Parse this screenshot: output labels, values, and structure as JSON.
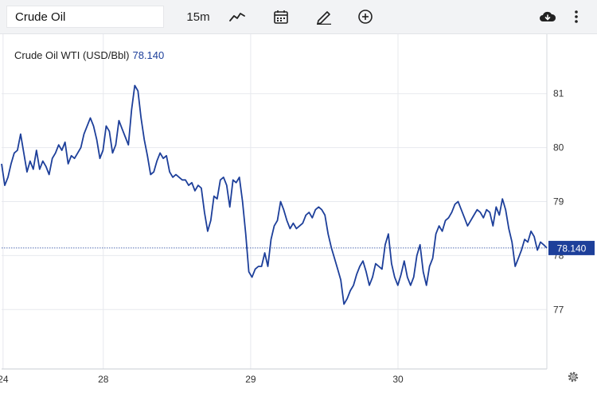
{
  "toolbar": {
    "symbol_value": "Crude Oil",
    "interval": "15m",
    "icons": [
      "line-chart-icon",
      "calendar-icon",
      "draw-pencil-icon",
      "add-indicator-icon",
      "download-cloud-icon",
      "more-vertical-icon"
    ]
  },
  "legend": {
    "instrument": "Crude Oil WTI (USD/Bbl)",
    "last_value": "78.140"
  },
  "colors": {
    "line": "#1d3f9a",
    "price_tag": "#1d3f9a",
    "grid": "#e7e9ee"
  },
  "chart_data": {
    "type": "line",
    "title": "",
    "xlabel": "",
    "ylabel": "",
    "ylim": [
      75.9,
      82.1
    ],
    "y_ticks": [
      "81",
      "80",
      "79",
      "78",
      "77"
    ],
    "y_tick_values": [
      81,
      80,
      79,
      78,
      77
    ],
    "x_ticks": [
      "24",
      "28",
      "29",
      "30"
    ],
    "x_tick_positions": [
      0.5,
      34.5,
      84.5,
      134.5
    ],
    "last_price": 78.14,
    "last_price_label": "78.140",
    "grid": true,
    "x_max": 185,
    "series": [
      {
        "name": "",
        "values": [
          79.7,
          79.3,
          79.45,
          79.7,
          79.9,
          79.95,
          80.25,
          79.9,
          79.55,
          79.75,
          79.6,
          79.95,
          79.6,
          79.75,
          79.65,
          79.5,
          79.8,
          79.9,
          80.05,
          79.95,
          80.1,
          79.7,
          79.85,
          79.8,
          79.9,
          80.0,
          80.25,
          80.4,
          80.55,
          80.4,
          80.15,
          79.8,
          79.95,
          80.4,
          80.3,
          79.9,
          80.05,
          80.5,
          80.35,
          80.2,
          80.05,
          80.7,
          81.15,
          81.05,
          80.55,
          80.15,
          79.85,
          79.5,
          79.55,
          79.75,
          79.9,
          79.8,
          79.85,
          79.55,
          79.45,
          79.5,
          79.45,
          79.4,
          79.4,
          79.3,
          79.35,
          79.2,
          79.3,
          79.25,
          78.8,
          78.45,
          78.65,
          79.1,
          79.05,
          79.4,
          79.45,
          79.3,
          78.9,
          79.4,
          79.35,
          79.45,
          79.0,
          78.4,
          77.7,
          77.6,
          77.75,
          77.8,
          77.8,
          78.05,
          77.8,
          78.3,
          78.55,
          78.65,
          79.0,
          78.85,
          78.65,
          78.5,
          78.6,
          78.5,
          78.55,
          78.6,
          78.75,
          78.8,
          78.7,
          78.85,
          78.9,
          78.85,
          78.75,
          78.4,
          78.15,
          77.95,
          77.75,
          77.55,
          77.1,
          77.2,
          77.35,
          77.45,
          77.65,
          77.8,
          77.9,
          77.7,
          77.45,
          77.6,
          77.85,
          77.8,
          77.75,
          78.2,
          78.4,
          77.85,
          77.6,
          77.45,
          77.65,
          77.9,
          77.6,
          77.45,
          77.6,
          78.0,
          78.2,
          77.7,
          77.45,
          77.8,
          77.95,
          78.4,
          78.55,
          78.45,
          78.65,
          78.7,
          78.8,
          78.95,
          79.0,
          78.85,
          78.7,
          78.55,
          78.65,
          78.75,
          78.85,
          78.8,
          78.7,
          78.85,
          78.8,
          78.55,
          78.9,
          78.75,
          79.05,
          78.85,
          78.5,
          78.25,
          77.8,
          77.95,
          78.1,
          78.3,
          78.25,
          78.45,
          78.35,
          78.1,
          78.25,
          78.2,
          78.14
        ]
      }
    ]
  }
}
